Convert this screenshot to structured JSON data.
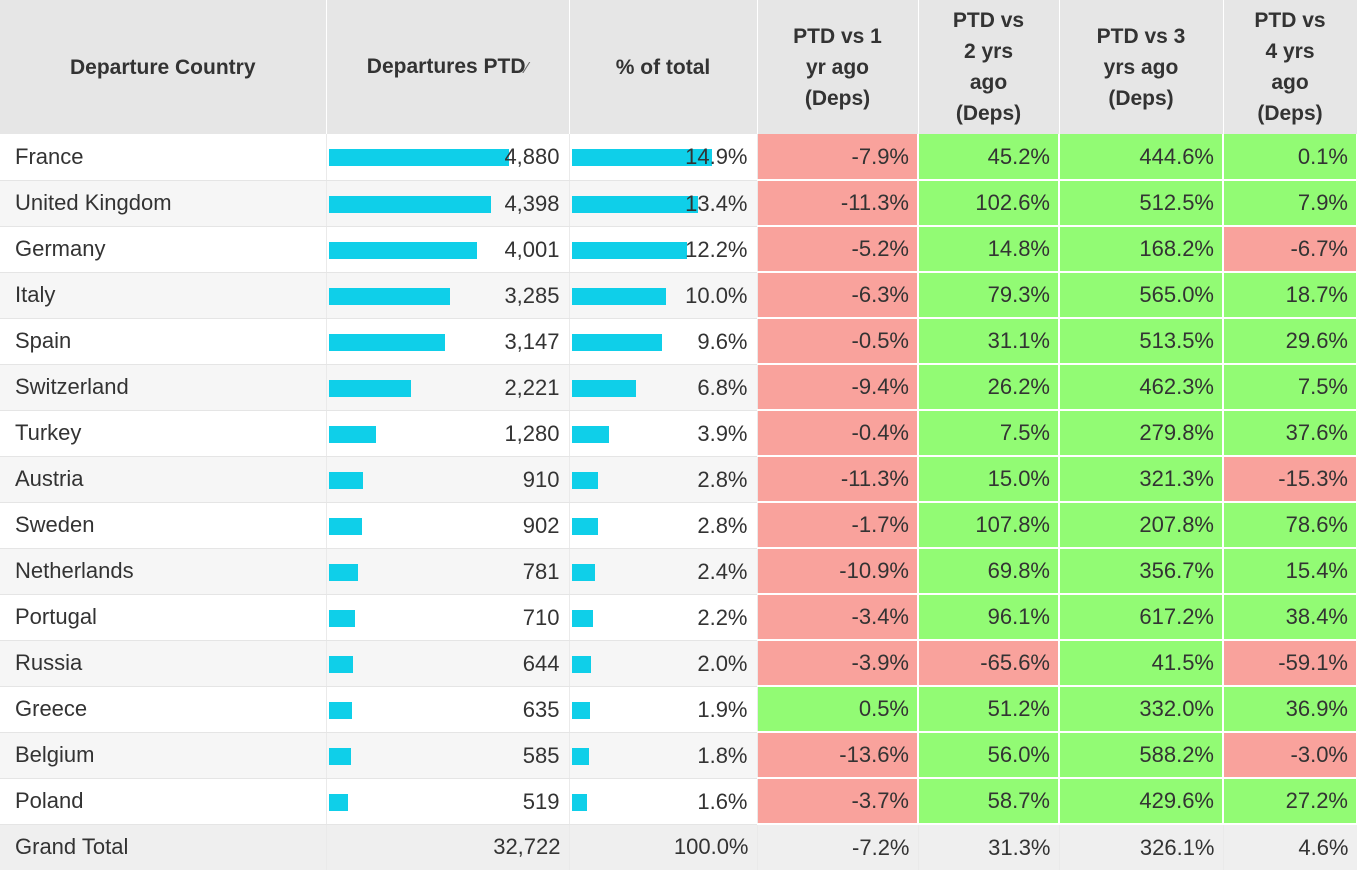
{
  "headers": {
    "country": "Departure Country",
    "departures": "Departures PTD",
    "sort_icon": "⁄",
    "percent": "% of total",
    "vs1": [
      "PTD vs 1",
      "yr ago",
      "(Deps)"
    ],
    "vs2": [
      "PTD vs",
      "2 yrs",
      "ago",
      "(Deps)"
    ],
    "vs3": [
      "PTD vs 3",
      "yrs ago",
      "(Deps)"
    ],
    "vs4": [
      "PTD vs",
      "4 yrs",
      "ago",
      "(Deps)"
    ]
  },
  "colors": {
    "bar": "#0fcfe9",
    "positive": "#92fb74",
    "negative": "#f9a29c",
    "header_bg": "#e6e6e6"
  },
  "max_departures": 4880,
  "max_percent": 14.9,
  "rows": [
    {
      "country": "France",
      "departures": "4,880",
      "dep_value": 4880,
      "percent": "14.9%",
      "pct_value": 14.9,
      "vs1": "-7.9%",
      "vs2": "45.2%",
      "vs3": "444.6%",
      "vs4": "0.1%"
    },
    {
      "country": "United Kingdom",
      "departures": "4,398",
      "dep_value": 4398,
      "percent": "13.4%",
      "pct_value": 13.4,
      "vs1": "-11.3%",
      "vs2": "102.6%",
      "vs3": "512.5%",
      "vs4": "7.9%"
    },
    {
      "country": "Germany",
      "departures": "4,001",
      "dep_value": 4001,
      "percent": "12.2%",
      "pct_value": 12.2,
      "vs1": "-5.2%",
      "vs2": "14.8%",
      "vs3": "168.2%",
      "vs4": "-6.7%"
    },
    {
      "country": "Italy",
      "departures": "3,285",
      "dep_value": 3285,
      "percent": "10.0%",
      "pct_value": 10.0,
      "vs1": "-6.3%",
      "vs2": "79.3%",
      "vs3": "565.0%",
      "vs4": "18.7%"
    },
    {
      "country": "Spain",
      "departures": "3,147",
      "dep_value": 3147,
      "percent": "9.6%",
      "pct_value": 9.6,
      "vs1": "-0.5%",
      "vs2": "31.1%",
      "vs3": "513.5%",
      "vs4": "29.6%"
    },
    {
      "country": "Switzerland",
      "departures": "2,221",
      "dep_value": 2221,
      "percent": "6.8%",
      "pct_value": 6.8,
      "vs1": "-9.4%",
      "vs2": "26.2%",
      "vs3": "462.3%",
      "vs4": "7.5%"
    },
    {
      "country": "Turkey",
      "departures": "1,280",
      "dep_value": 1280,
      "percent": "3.9%",
      "pct_value": 3.9,
      "vs1": "-0.4%",
      "vs2": "7.5%",
      "vs3": "279.8%",
      "vs4": "37.6%"
    },
    {
      "country": "Austria",
      "departures": "910",
      "dep_value": 910,
      "percent": "2.8%",
      "pct_value": 2.8,
      "vs1": "-11.3%",
      "vs2": "15.0%",
      "vs3": "321.3%",
      "vs4": "-15.3%"
    },
    {
      "country": "Sweden",
      "departures": "902",
      "dep_value": 902,
      "percent": "2.8%",
      "pct_value": 2.8,
      "vs1": "-1.7%",
      "vs2": "107.8%",
      "vs3": "207.8%",
      "vs4": "78.6%"
    },
    {
      "country": "Netherlands",
      "departures": "781",
      "dep_value": 781,
      "percent": "2.4%",
      "pct_value": 2.4,
      "vs1": "-10.9%",
      "vs2": "69.8%",
      "vs3": "356.7%",
      "vs4": "15.4%"
    },
    {
      "country": "Portugal",
      "departures": "710",
      "dep_value": 710,
      "percent": "2.2%",
      "pct_value": 2.2,
      "vs1": "-3.4%",
      "vs2": "96.1%",
      "vs3": "617.2%",
      "vs4": "38.4%"
    },
    {
      "country": "Russia",
      "departures": "644",
      "dep_value": 644,
      "percent": "2.0%",
      "pct_value": 2.0,
      "vs1": "-3.9%",
      "vs2": "-65.6%",
      "vs3": "41.5%",
      "vs4": "-59.1%"
    },
    {
      "country": "Greece",
      "departures": "635",
      "dep_value": 635,
      "percent": "1.9%",
      "pct_value": 1.9,
      "vs1": "0.5%",
      "vs2": "51.2%",
      "vs3": "332.0%",
      "vs4": "36.9%"
    },
    {
      "country": "Belgium",
      "departures": "585",
      "dep_value": 585,
      "percent": "1.8%",
      "pct_value": 1.8,
      "vs1": "-13.6%",
      "vs2": "56.0%",
      "vs3": "588.2%",
      "vs4": "-3.0%"
    },
    {
      "country": "Poland",
      "departures": "519",
      "dep_value": 519,
      "percent": "1.6%",
      "pct_value": 1.6,
      "vs1": "-3.7%",
      "vs2": "58.7%",
      "vs3": "429.6%",
      "vs4": "27.2%"
    }
  ],
  "total": {
    "country": "Grand Total",
    "departures": "32,722",
    "percent": "100.0%",
    "vs1": "-7.2%",
    "vs2": "31.3%",
    "vs3": "326.1%",
    "vs4": "4.6%"
  }
}
